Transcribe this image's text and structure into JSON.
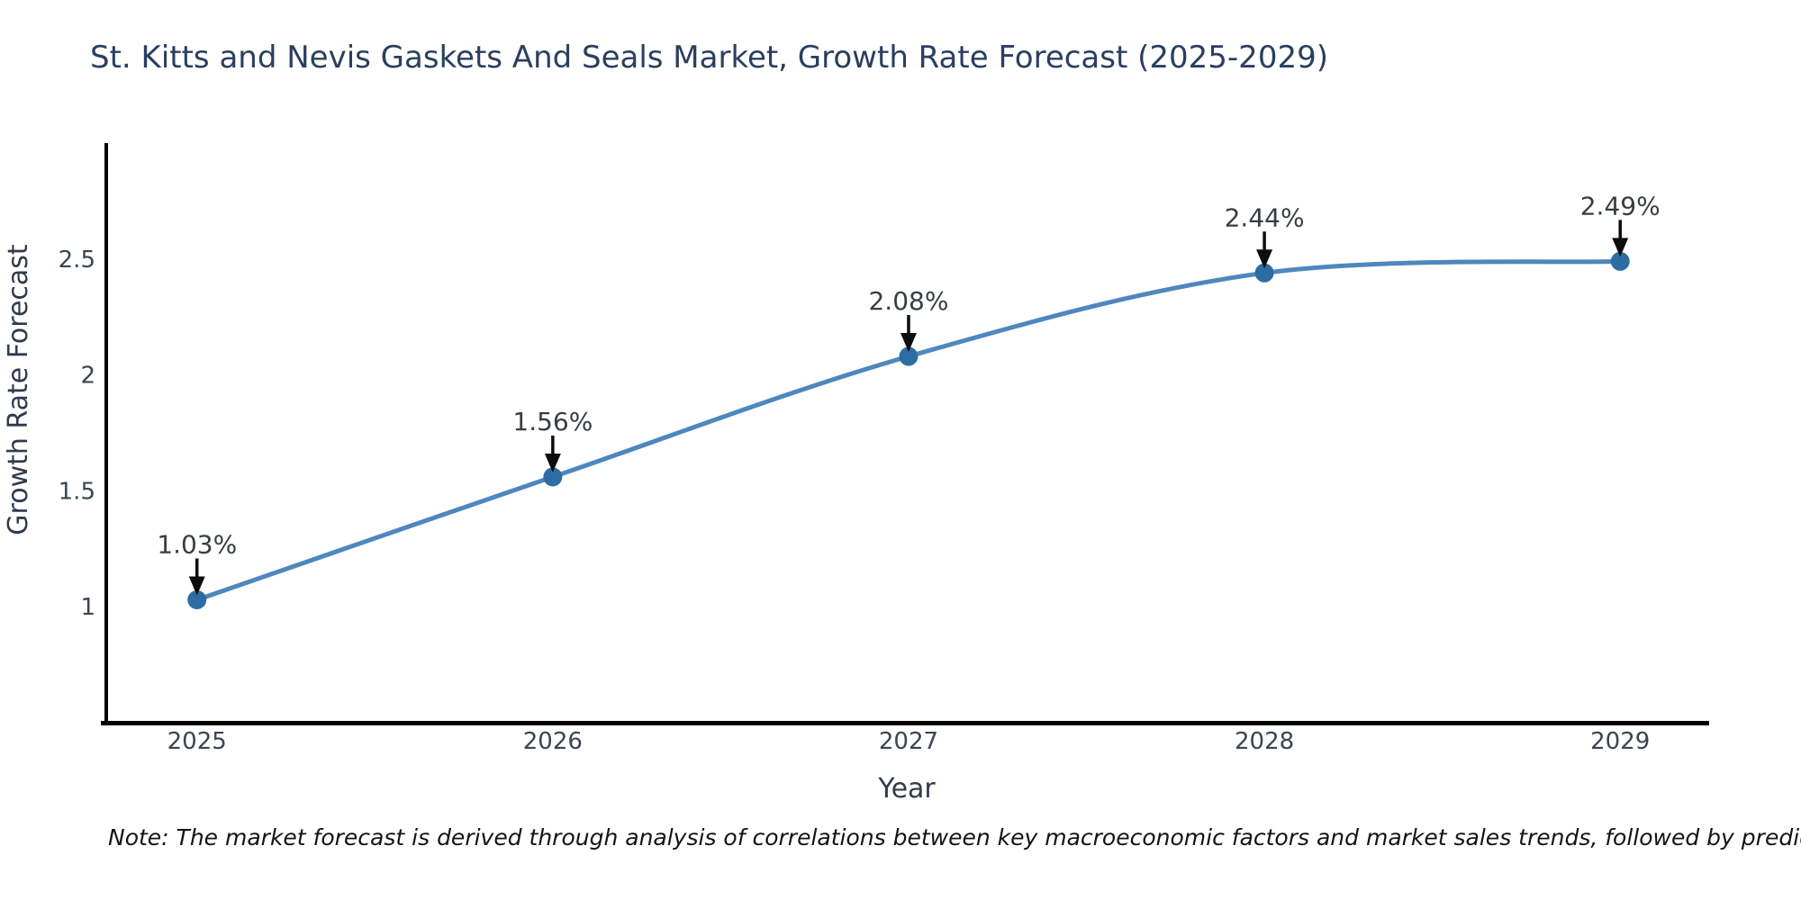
{
  "title": "St. Kitts and Nevis Gaskets And Seals Market, Growth Rate Forecast (2025-2029)",
  "note": "Note: The market forecast is derived through analysis of correlations between key macroeconomic factors and market sales trends, followed by predictive modeling to project future sales trends.",
  "chart_data": {
    "type": "line",
    "title": "St. Kitts and Nevis Gaskets And Seals Market, Growth Rate Forecast (2025-2029)",
    "xlabel": "Year",
    "ylabel": "Growth Rate Forecast",
    "x": [
      2025,
      2026,
      2027,
      2028,
      2029
    ],
    "values": [
      1.03,
      1.56,
      2.08,
      2.44,
      2.49
    ],
    "point_labels": [
      "1.03%",
      "1.56%",
      "2.08%",
      "2.44%",
      "2.49%"
    ],
    "xtick_labels": [
      "2025",
      "2026",
      "2027",
      "2028",
      "2029"
    ],
    "yticks": [
      1,
      1.5,
      2,
      2.5
    ],
    "ytick_labels": [
      "1",
      "1.5",
      "2",
      "2.5"
    ],
    "xlim": [
      2024.74,
      2029.25
    ],
    "ylim": [
      0.5,
      3.0
    ],
    "line_shape": "spline",
    "grid": false,
    "legend": "none",
    "annotation_style": "value label with down arrow to point",
    "colors": {
      "line": "#4e87bd",
      "marker": "#2e6da4",
      "arrow": "#0d0d0d",
      "annotation_text": "#383d42",
      "axis_line": "#000000",
      "tick_text": "#3b4453",
      "axis_title_text": "#2f3b4c",
      "title_text": "#2a3f5f",
      "background": "#ffffff"
    }
  }
}
